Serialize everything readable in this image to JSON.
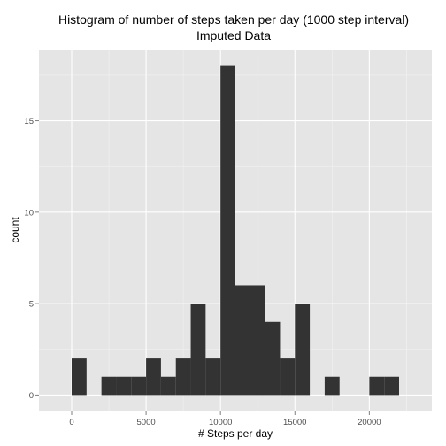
{
  "chart_data": {
    "type": "bar",
    "title": "Histogram of number of steps taken per day (1000 step interval)",
    "subtitle": "Imputed Data",
    "xlabel": "# Steps per day",
    "ylabel": "count",
    "bin_width": 1000,
    "bins": [
      {
        "x_start": 0,
        "x_end": 1000,
        "count": 2
      },
      {
        "x_start": 1000,
        "x_end": 2000,
        "count": 0
      },
      {
        "x_start": 2000,
        "x_end": 3000,
        "count": 1
      },
      {
        "x_start": 3000,
        "x_end": 4000,
        "count": 1
      },
      {
        "x_start": 4000,
        "x_end": 5000,
        "count": 1
      },
      {
        "x_start": 5000,
        "x_end": 6000,
        "count": 2
      },
      {
        "x_start": 6000,
        "x_end": 7000,
        "count": 1
      },
      {
        "x_start": 7000,
        "x_end": 8000,
        "count": 2
      },
      {
        "x_start": 8000,
        "x_end": 9000,
        "count": 5
      },
      {
        "x_start": 9000,
        "x_end": 10000,
        "count": 2
      },
      {
        "x_start": 10000,
        "x_end": 11000,
        "count": 18
      },
      {
        "x_start": 11000,
        "x_end": 12000,
        "count": 6
      },
      {
        "x_start": 12000,
        "x_end": 13000,
        "count": 6
      },
      {
        "x_start": 13000,
        "x_end": 14000,
        "count": 4
      },
      {
        "x_start": 14000,
        "x_end": 15000,
        "count": 2
      },
      {
        "x_start": 15000,
        "x_end": 16000,
        "count": 5
      },
      {
        "x_start": 16000,
        "x_end": 17000,
        "count": 0
      },
      {
        "x_start": 17000,
        "x_end": 18000,
        "count": 1
      },
      {
        "x_start": 18000,
        "x_end": 19000,
        "count": 0
      },
      {
        "x_start": 19000,
        "x_end": 20000,
        "count": 0
      },
      {
        "x_start": 20000,
        "x_end": 21000,
        "count": 1
      },
      {
        "x_start": 21000,
        "x_end": 22000,
        "count": 1
      }
    ],
    "xlim": [
      -2200,
      24200
    ],
    "ylim": [
      -0.9,
      18.9
    ],
    "x_ticks": [
      0,
      5000,
      10000,
      15000,
      20000
    ],
    "x_tick_labels": [
      "0",
      "5000",
      "10000",
      "15000",
      "20000"
    ],
    "y_ticks": [
      0,
      5,
      10,
      15
    ],
    "y_tick_labels": [
      "0",
      "5",
      "10",
      "15"
    ],
    "grid": true,
    "legend": "none",
    "colors": {
      "panel_background": "#e5e5e5",
      "grid_major": "#ffffff",
      "grid_minor": "#f2f2f2",
      "bar_fill": "#333333",
      "tick_label": "#4d4d4d",
      "text": "#000000"
    }
  }
}
